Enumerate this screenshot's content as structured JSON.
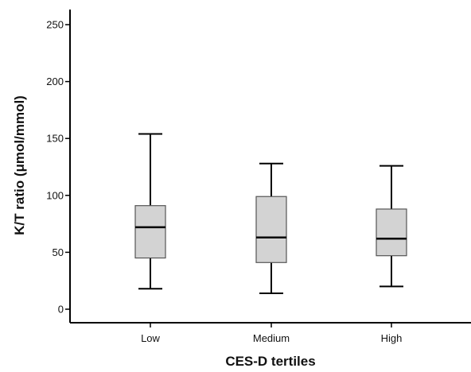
{
  "chart_data": {
    "type": "boxplot",
    "xlabel": "CES-D tertiles",
    "ylabel": "K/T ratio (μmol/mmol)",
    "ylim": [
      -12,
      262
    ],
    "yticks": [
      0,
      50,
      100,
      150,
      200,
      250
    ],
    "ytick_labels": [
      "0",
      "50",
      "100",
      "150",
      "200",
      "250"
    ],
    "categories": [
      "Low",
      "Medium",
      "High"
    ],
    "boxes": [
      {
        "category": "Low",
        "whisker_low": 18,
        "q1": 45,
        "median": 72,
        "q3": 91,
        "whisker_high": 154
      },
      {
        "category": "Medium",
        "whisker_low": 14,
        "q1": 41,
        "median": 63,
        "q3": 99,
        "whisker_high": 128
      },
      {
        "category": "High",
        "whisker_low": 20,
        "q1": 47,
        "median": 62,
        "q3": 88,
        "whisker_high": 126
      }
    ],
    "grid": false,
    "legend": "none",
    "colors": {
      "box_fill": "#d3d3d3",
      "line": "#000000"
    }
  }
}
